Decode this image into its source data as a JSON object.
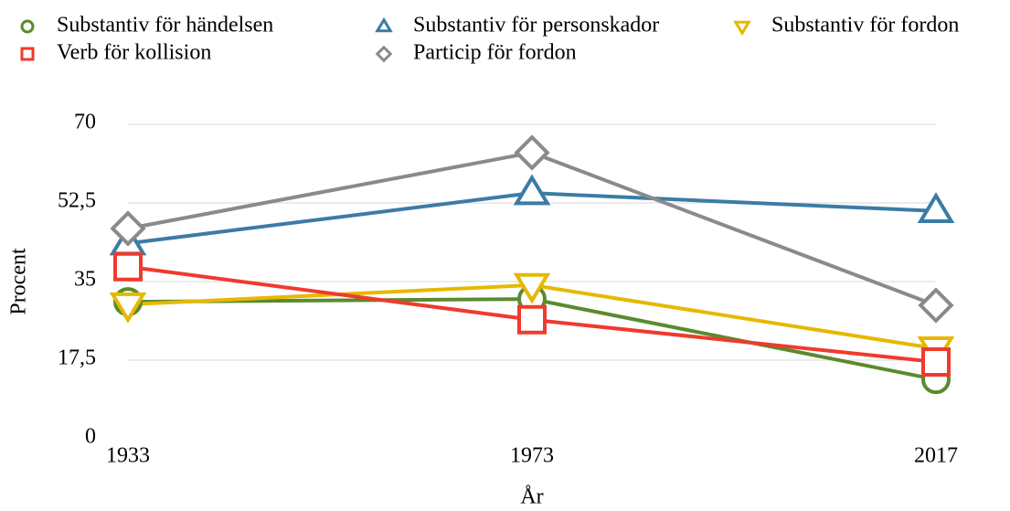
{
  "chart_data": {
    "type": "line",
    "x_label": "År",
    "y_label": "Procent",
    "categories": [
      "1933",
      "1973",
      "2017"
    ],
    "series": [
      {
        "name": "Substantiv för händelsen",
        "color": "#5b8a2e",
        "marker": "circle",
        "values": [
          30.5,
          31.1,
          13.2
        ]
      },
      {
        "name": "Substantiv för personskador",
        "color": "#3a7ca5",
        "marker": "triangle-up",
        "values": [
          43.5,
          54.7,
          50.7
        ]
      },
      {
        "name": "Substantiv för fordon",
        "color": "#e6b800",
        "marker": "triangle-down",
        "values": [
          29.9,
          34.2,
          20.1
        ]
      },
      {
        "name": "Verb för kollision",
        "color": "#f03a2e",
        "marker": "square",
        "values": [
          38.3,
          26.5,
          17.1
        ]
      },
      {
        "name": "Particip för fordon",
        "color": "#8a8a8a",
        "marker": "diamond",
        "values": [
          46.8,
          63.7,
          29.7
        ]
      }
    ],
    "ylim": [
      0,
      70
    ],
    "yticks": [
      0,
      {
        "value": 17.5,
        "label": "17,5"
      },
      35,
      {
        "value": 52.5,
        "label": "52,5"
      },
      70
    ],
    "grid": true,
    "legend": "top"
  }
}
